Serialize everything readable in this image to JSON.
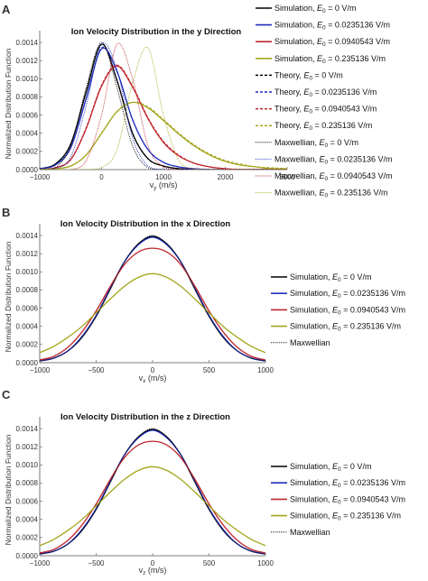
{
  "panels": [
    {
      "letter": "A",
      "title": "Ion Velocity Distribution in the y Direction",
      "ylabel": "Normalized Distribution Function",
      "xlabel_main": "v",
      "xlabel_sub": "y",
      "xlabel_unit": " (m/s)",
      "legend": [
        {
          "kind": "sim",
          "color": "#000000",
          "pre": "Simulation, ",
          "e": "E",
          "esub": "0",
          "post": " = 0 V/m"
        },
        {
          "kind": "sim",
          "color": "#1f2fbf",
          "pre": "Simulation, ",
          "e": "E",
          "esub": "0",
          "post": " = 0.0235136 V/m"
        },
        {
          "kind": "sim",
          "color": "#c0262d",
          "pre": "Simulation, ",
          "e": "E",
          "esub": "0",
          "post": " = 0.0940543 V/m"
        },
        {
          "kind": "sim",
          "color": "#a4a61c",
          "pre": "Simulation, ",
          "e": "E",
          "esub": "0",
          "post": " = 0.235136 V/m"
        },
        {
          "kind": "theory",
          "color": "#000000",
          "pre": "Theory, ",
          "e": "E",
          "esub": "0",
          "post": " = 0 V/m"
        },
        {
          "kind": "theory",
          "color": "#1f2fbf",
          "pre": "Theory, ",
          "e": "E",
          "esub": "0",
          "post": " = 0.0235136 V/m"
        },
        {
          "kind": "theory",
          "color": "#c0262d",
          "pre": "Theory, ",
          "e": "E",
          "esub": "0",
          "post": " = 0.0940543 V/m"
        },
        {
          "kind": "theory",
          "color": "#a4a61c",
          "pre": "Theory, ",
          "e": "E",
          "esub": "0",
          "post": " = 0.235136 V/m"
        },
        {
          "kind": "maxwell",
          "color": "#000000",
          "pre": "Maxwellian, ",
          "e": "E",
          "esub": "0",
          "post": " = 0 V/m"
        },
        {
          "kind": "maxwell",
          "color": "#1f2fbf",
          "pre": "Maxwellian, ",
          "e": "E",
          "esub": "0",
          "post": " = 0.0235136 V/m"
        },
        {
          "kind": "maxwell",
          "color": "#c0262d",
          "pre": "Maxwellian, ",
          "e": "E",
          "esub": "0",
          "post": " = 0.0940543 V/m"
        },
        {
          "kind": "maxwell",
          "color": "#a4a61c",
          "pre": "Maxwellian, ",
          "e": "E",
          "esub": "0",
          "post": " = 0.235136 V/m"
        }
      ]
    },
    {
      "letter": "B",
      "title": "Ion Velocity Distribution in the x Direction",
      "ylabel": "Normalized Distribution Function",
      "xlabel_main": "v",
      "xlabel_sub": "x",
      "xlabel_unit": " (m/s)",
      "legend": [
        {
          "kind": "sim",
          "color": "#000000",
          "pre": "Simulation, ",
          "e": "E",
          "esub": "0",
          "post": " = 0 V/m"
        },
        {
          "kind": "sim",
          "color": "#1f2fbf",
          "pre": "Simulation, ",
          "e": "E",
          "esub": "0",
          "post": " = 0.0235136 V/m"
        },
        {
          "kind": "sim",
          "color": "#c0262d",
          "pre": "Simulation, ",
          "e": "E",
          "esub": "0",
          "post": " = 0.0940543 V/m"
        },
        {
          "kind": "sim",
          "color": "#a4a61c",
          "pre": "Simulation, ",
          "e": "E",
          "esub": "0",
          "post": " = 0.235136 V/m"
        },
        {
          "kind": "maxwell",
          "color": "#000000",
          "pre": "Maxwellian",
          "e": "",
          "esub": "",
          "post": ""
        }
      ]
    },
    {
      "letter": "C",
      "title": "Ion Velocity Distribution in the z Direction",
      "ylabel": "Normalized Distribution Function",
      "xlabel_main": "v",
      "xlabel_sub": "z",
      "xlabel_unit": " (m/s)",
      "legend": [
        {
          "kind": "sim",
          "color": "#000000",
          "pre": "Simulation, ",
          "e": "E",
          "esub": "0",
          "post": " = 0 V/m"
        },
        {
          "kind": "sim",
          "color": "#1f2fbf",
          "pre": "Simulation, ",
          "e": "E",
          "esub": "0",
          "post": " = 0.0235136 V/m"
        },
        {
          "kind": "sim",
          "color": "#c0262d",
          "pre": "Simulation, ",
          "e": "E",
          "esub": "0",
          "post": " = 0.0940543 V/m"
        },
        {
          "kind": "sim",
          "color": "#a4a61c",
          "pre": "Simulation, ",
          "e": "E",
          "esub": "0",
          "post": " = 0.235136 V/m"
        },
        {
          "kind": "maxwell",
          "color": "#000000",
          "pre": "Maxwellian",
          "e": "",
          "esub": "",
          "post": ""
        }
      ]
    }
  ],
  "chart_data": [
    {
      "type": "line",
      "title": "Ion Velocity Distribution in the y Direction",
      "xlabel": "vy (m/s)",
      "ylabel": "Normalized Distribution Function",
      "xlim": [
        -1000,
        3000
      ],
      "ylim": [
        0,
        0.00145
      ],
      "xticks": [
        -1000,
        0,
        1000,
        2000,
        3000
      ],
      "yticks": [
        0,
        0.0002,
        0.0004,
        0.0006,
        0.0008,
        0.001,
        0.0012,
        0.0014
      ],
      "ytick_labels": [
        "0.0000",
        "0.0002",
        "0.0004",
        "0.0006",
        "0.0008",
        "0.0010",
        "0.0012",
        "0.0014"
      ],
      "legend_position": "right",
      "x": [
        -1000,
        -750,
        -500,
        -250,
        0,
        250,
        500,
        750,
        1000,
        1250,
        1500,
        1750,
        2000,
        2250,
        2500,
        2750,
        3000
      ],
      "series": [
        {
          "name": "Simulation, E0 = 0 V/m",
          "style": "solid",
          "color": "#000000",
          "values": [
            1e-05,
            6e-05,
            0.00028,
            0.00085,
            0.00138,
            0.00098,
            0.0004,
            0.00012,
            4e-05,
            1e-05,
            0,
            0,
            0,
            0,
            0,
            0,
            0
          ]
        },
        {
          "name": "Simulation, E0 = 0.0235136 V/m",
          "style": "solid",
          "color": "#1f2fbf",
          "values": [
            1e-05,
            5e-05,
            0.00024,
            0.00078,
            0.00133,
            0.00108,
            0.00055,
            0.00022,
            8e-05,
            3e-05,
            1e-05,
            0,
            0,
            0,
            0,
            0,
            0
          ]
        },
        {
          "name": "Simulation, E0 = 0.0940543 V/m",
          "style": "solid",
          "color": "#c0262d",
          "values": [
            0,
            2e-05,
            0.00011,
            0.00045,
            0.00092,
            0.00114,
            0.00091,
            0.00056,
            0.0003,
            0.00015,
            7e-05,
            3e-05,
            1e-05,
            0,
            0,
            0,
            0
          ]
        },
        {
          "name": "Simulation, E0 = 0.235136 V/m",
          "style": "solid",
          "color": "#a4a61c",
          "values": [
            0,
            1e-05,
            4e-05,
            0.00016,
            0.0004,
            0.00064,
            0.00074,
            0.00068,
            0.00054,
            0.00039,
            0.00026,
            0.00016,
            9e-05,
            5e-05,
            3e-05,
            1e-05,
            1e-05
          ]
        },
        {
          "name": "Theory, E0 = 0 V/m",
          "style": "dashed",
          "color": "#000000",
          "values": [
            1e-05,
            6e-05,
            0.00028,
            0.00086,
            0.00138,
            0.00098,
            0.0004,
            0.00012,
            4e-05,
            1e-05,
            0,
            0,
            0,
            0,
            0,
            0,
            0
          ]
        },
        {
          "name": "Theory, E0 = 0.0235136 V/m",
          "style": "dashed",
          "color": "#1f2fbf",
          "values": [
            1e-05,
            5e-05,
            0.00024,
            0.00078,
            0.00134,
            0.00108,
            0.00055,
            0.00022,
            8e-05,
            3e-05,
            1e-05,
            0,
            0,
            0,
            0,
            0,
            0
          ]
        },
        {
          "name": "Theory, E0 = 0.0940543 V/m",
          "style": "dashed",
          "color": "#c0262d",
          "values": [
            0,
            2e-05,
            0.00011,
            0.00046,
            0.00093,
            0.00115,
            0.00092,
            0.00057,
            0.00031,
            0.00016,
            7e-05,
            3e-05,
            1e-05,
            0,
            0,
            0,
            0
          ]
        },
        {
          "name": "Theory, E0 = 0.235136 V/m",
          "style": "dashed",
          "color": "#a4a61c",
          "values": [
            0,
            1e-05,
            4e-05,
            0.00016,
            0.0004,
            0.00064,
            0.00074,
            0.00069,
            0.00055,
            0.0004,
            0.00027,
            0.00017,
            0.0001,
            6e-05,
            3e-05,
            2e-05,
            1e-05
          ]
        },
        {
          "name": "Maxwellian, E0 = 0 V/m",
          "style": "dotted",
          "color": "#000000",
          "values": [
            0,
            2e-05,
            0.00026,
            0.0009,
            0.0014,
            0.0009,
            0.00026,
            2e-05,
            0,
            0,
            0,
            0,
            0,
            0,
            0,
            0,
            0
          ]
        },
        {
          "name": "Maxwellian, E0 = 0.0235136 V/m",
          "style": "dotted",
          "color": "#1f2fbf",
          "values": [
            0,
            1e-05,
            0.00014,
            0.0007,
            0.00138,
            0.0011,
            0.00035,
            4e-05,
            0,
            0,
            0,
            0,
            0,
            0,
            0,
            0,
            0
          ]
        },
        {
          "name": "Maxwellian, E0 = 0.0940543 V/m",
          "style": "dotted",
          "color": "#c0262d",
          "values": [
            0,
            0,
            0,
            0.0001,
            0.0006,
            0.00138,
            0.001,
            0.00026,
            3e-05,
            0,
            0,
            0,
            0,
            0,
            0,
            0,
            0
          ]
        },
        {
          "name": "Maxwellian, E0 = 0.235136 V/m",
          "style": "dotted",
          "color": "#a4a61c",
          "values": [
            0,
            0,
            0,
            0,
            2e-05,
            0.00022,
            0.00095,
            0.00134,
            0.0006,
            0.0001,
            1e-05,
            0,
            0,
            0,
            0,
            0,
            0
          ]
        }
      ]
    },
    {
      "type": "line",
      "title": "Ion Velocity Distribution in the x Direction",
      "xlabel": "vx (m/s)",
      "ylabel": "Normalized Distribution Function",
      "xlim": [
        -1000,
        1000
      ],
      "ylim": [
        0,
        0.00145
      ],
      "xticks": [
        -1000,
        -500,
        0,
        500,
        1000
      ],
      "yticks": [
        0,
        0.0002,
        0.0004,
        0.0006,
        0.0008,
        0.001,
        0.0012,
        0.0014
      ],
      "ytick_labels": [
        "0.0000",
        "0.0002",
        "0.0004",
        "0.0006",
        "0.0008",
        "0.0010",
        "0.0012",
        "0.0014"
      ],
      "legend_position": "right",
      "x": [
        -1000,
        -875,
        -750,
        -625,
        -500,
        -375,
        -250,
        -125,
        0,
        125,
        250,
        375,
        500,
        625,
        750,
        875,
        1000
      ],
      "series": [
        {
          "name": "Simulation, E0 = 0 V/m",
          "style": "solid",
          "color": "#000000",
          "values": [
            2e-05,
            5e-05,
            0.00013,
            0.00028,
            0.00051,
            0.00081,
            0.00111,
            0.00131,
            0.00139,
            0.00131,
            0.00111,
            0.00081,
            0.00051,
            0.00028,
            0.00013,
            5e-05,
            2e-05
          ]
        },
        {
          "name": "Simulation, E0 = 0.0235136 V/m",
          "style": "solid",
          "color": "#1f2fbf",
          "values": [
            2e-05,
            5e-05,
            0.00013,
            0.00029,
            0.00052,
            0.00082,
            0.00111,
            0.0013,
            0.00138,
            0.0013,
            0.00111,
            0.00082,
            0.00052,
            0.00029,
            0.00013,
            5e-05,
            2e-05
          ]
        },
        {
          "name": "Simulation, E0 = 0.0940543 V/m",
          "style": "solid",
          "color": "#c0262d",
          "values": [
            3e-05,
            7e-05,
            0.00017,
            0.00034,
            0.00057,
            0.00084,
            0.00108,
            0.00122,
            0.00126,
            0.00122,
            0.00108,
            0.00084,
            0.00057,
            0.00034,
            0.00017,
            7e-05,
            3e-05
          ]
        },
        {
          "name": "Simulation, E0 = 0.235136 V/m",
          "style": "solid",
          "color": "#a4a61c",
          "values": [
            0.00011,
            0.00018,
            0.00028,
            0.0004,
            0.00055,
            0.0007,
            0.00084,
            0.00094,
            0.00098,
            0.00094,
            0.00084,
            0.0007,
            0.00055,
            0.0004,
            0.00028,
            0.00018,
            0.00011
          ]
        },
        {
          "name": "Maxwellian",
          "style": "dotted",
          "color": "#000000",
          "values": [
            2e-05,
            5e-05,
            0.00013,
            0.00028,
            0.00051,
            0.00081,
            0.00111,
            0.00131,
            0.0014,
            0.00131,
            0.00111,
            0.00081,
            0.00051,
            0.00028,
            0.00013,
            5e-05,
            2e-05
          ]
        }
      ]
    },
    {
      "type": "line",
      "title": "Ion Velocity Distribution in the z Direction",
      "xlabel": "vz (m/s)",
      "ylabel": "Normalized Distribution Function",
      "xlim": [
        -1000,
        1000
      ],
      "ylim": [
        0,
        0.00145
      ],
      "xticks": [
        -1000,
        -500,
        0,
        500,
        1000
      ],
      "yticks": [
        0,
        0.0002,
        0.0004,
        0.0006,
        0.0008,
        0.001,
        0.0012,
        0.0014
      ],
      "ytick_labels": [
        "0.0000",
        "0.0002",
        "0.0004",
        "0.0006",
        "0.0008",
        "0.0010",
        "0.0012",
        "0.0014"
      ],
      "legend_position": "right",
      "x": [
        -1000,
        -875,
        -750,
        -625,
        -500,
        -375,
        -250,
        -125,
        0,
        125,
        250,
        375,
        500,
        625,
        750,
        875,
        1000
      ],
      "series": [
        {
          "name": "Simulation, E0 = 0 V/m",
          "style": "solid",
          "color": "#000000",
          "values": [
            2e-05,
            5e-05,
            0.00013,
            0.00028,
            0.00051,
            0.00081,
            0.00111,
            0.00131,
            0.00139,
            0.00131,
            0.00111,
            0.00081,
            0.00051,
            0.00028,
            0.00013,
            5e-05,
            2e-05
          ]
        },
        {
          "name": "Simulation, E0 = 0.0235136 V/m",
          "style": "solid",
          "color": "#1f2fbf",
          "values": [
            2e-05,
            5e-05,
            0.00013,
            0.00029,
            0.00052,
            0.00082,
            0.00111,
            0.0013,
            0.00138,
            0.0013,
            0.00111,
            0.00082,
            0.00052,
            0.00029,
            0.00013,
            5e-05,
            2e-05
          ]
        },
        {
          "name": "Simulation, E0 = 0.0940543 V/m",
          "style": "solid",
          "color": "#c0262d",
          "values": [
            3e-05,
            7e-05,
            0.00017,
            0.00034,
            0.00057,
            0.00084,
            0.00108,
            0.00122,
            0.00126,
            0.00122,
            0.00108,
            0.00084,
            0.00057,
            0.00034,
            0.00017,
            7e-05,
            3e-05
          ]
        },
        {
          "name": "Simulation, E0 = 0.235136 V/m",
          "style": "solid",
          "color": "#a4a61c",
          "values": [
            0.00011,
            0.00018,
            0.00028,
            0.0004,
            0.00055,
            0.0007,
            0.00084,
            0.00094,
            0.00098,
            0.00094,
            0.00084,
            0.0007,
            0.00055,
            0.0004,
            0.00028,
            0.00018,
            0.00011
          ]
        },
        {
          "name": "Maxwellian",
          "style": "dotted",
          "color": "#000000",
          "values": [
            2e-05,
            5e-05,
            0.00013,
            0.00028,
            0.00051,
            0.00081,
            0.00111,
            0.00131,
            0.0014,
            0.00131,
            0.00111,
            0.00081,
            0.00051,
            0.00028,
            0.00013,
            5e-05,
            2e-05
          ]
        }
      ]
    }
  ]
}
